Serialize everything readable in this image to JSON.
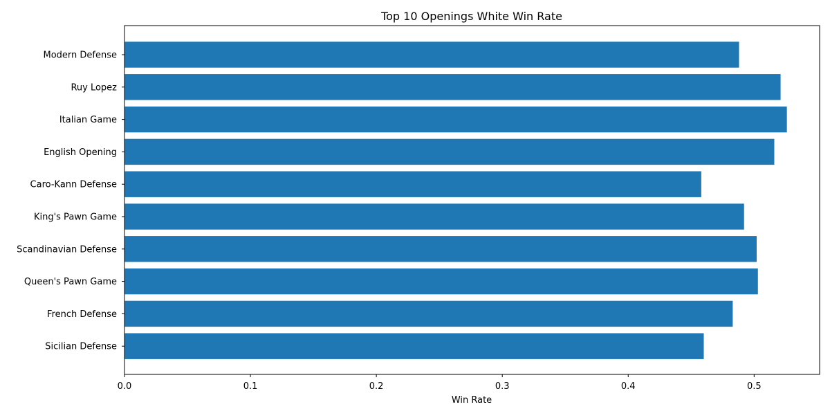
{
  "chart_data": {
    "type": "bar",
    "orientation": "horizontal",
    "title": "Top 10 Openings White Win Rate",
    "xlabel": "Win Rate",
    "ylabel": "",
    "categories": [
      "Modern Defense",
      "Ruy Lopez",
      "Italian Game",
      "English Opening",
      "Caro-Kann Defense",
      "King's Pawn Game",
      "Scandinavian Defense",
      "Queen's Pawn Game",
      "French Defense",
      "Sicilian Defense"
    ],
    "values": [
      0.488,
      0.521,
      0.526,
      0.516,
      0.458,
      0.492,
      0.502,
      0.503,
      0.483,
      0.46
    ],
    "xlim": [
      0,
      0.552
    ],
    "xticks": [
      0.0,
      0.1,
      0.2,
      0.3,
      0.4,
      0.5
    ],
    "xtick_labels": [
      "0.0",
      "0.1",
      "0.2",
      "0.3",
      "0.4",
      "0.5"
    ],
    "bar_color": "#1f77b4",
    "grid": false,
    "legend": "none"
  }
}
